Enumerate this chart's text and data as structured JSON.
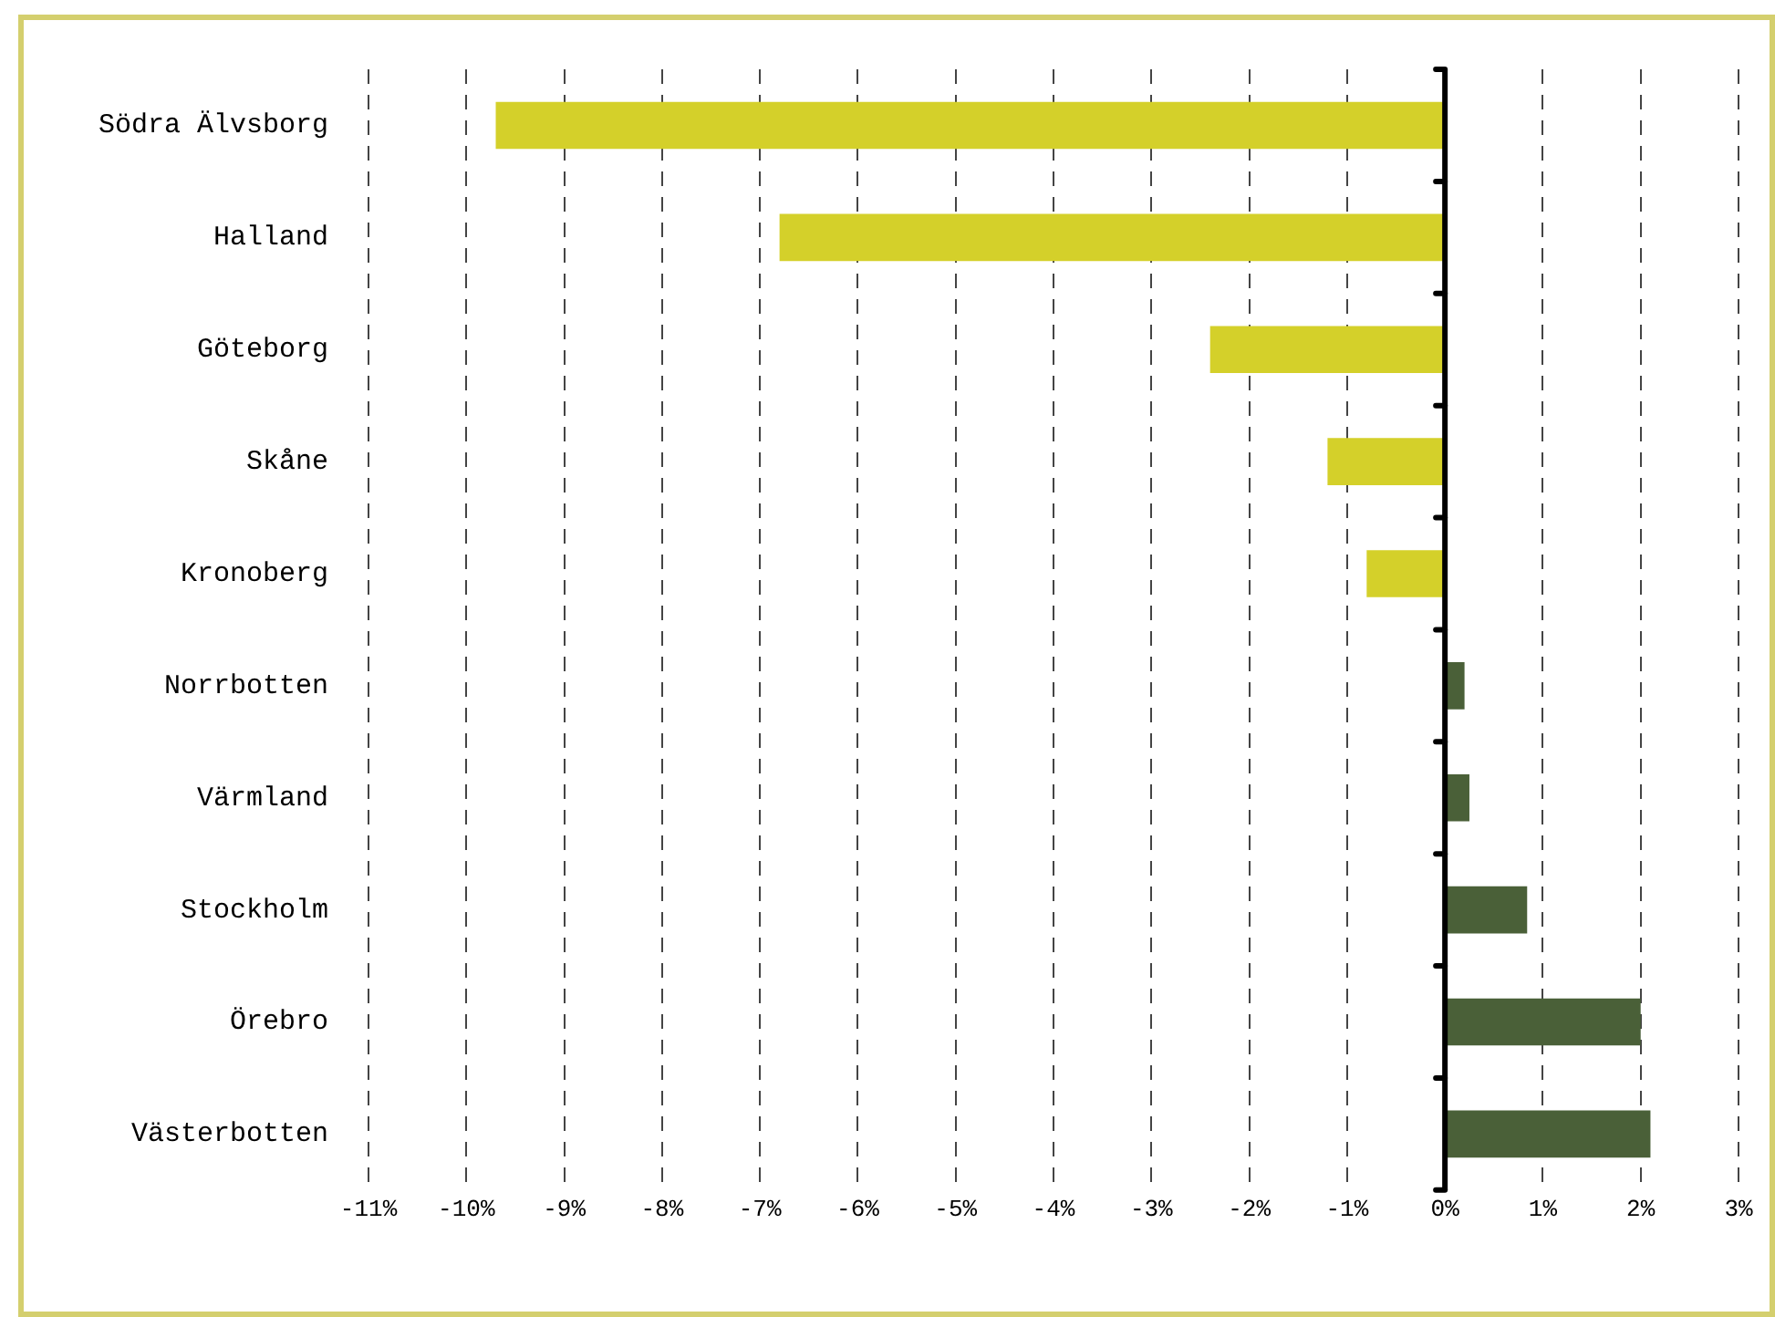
{
  "chart_data": {
    "type": "bar",
    "orientation": "horizontal",
    "categories": [
      "Södra Älvsborg",
      "Halland",
      "Göteborg",
      "Skåne",
      "Kronoberg",
      "Norrbotten",
      "Värmland",
      "Stockholm",
      "Örebro",
      "Västerbotten"
    ],
    "values": [
      -9.7,
      -6.8,
      -2.4,
      -1.2,
      -0.8,
      0.2,
      0.25,
      0.84,
      2.0,
      2.1
    ],
    "colors": [
      "#d4d02a",
      "#d4d02a",
      "#d4d02a",
      "#d4d02a",
      "#d4d02a",
      "#4a6038",
      "#4a6038",
      "#4a6038",
      "#4a6038",
      "#4a6038"
    ],
    "xlim": [
      -11,
      3
    ],
    "xticks": [
      {
        "value": -11,
        "label": "-11%"
      },
      {
        "value": -10,
        "label": "-10%"
      },
      {
        "value": -9,
        "label": "-9%"
      },
      {
        "value": -8,
        "label": "-8%"
      },
      {
        "value": -7,
        "label": "-7%"
      },
      {
        "value": -6,
        "label": "-6%"
      },
      {
        "value": -5,
        "label": "-5%"
      },
      {
        "value": -4,
        "label": "-4%"
      },
      {
        "value": -3,
        "label": "-3%"
      },
      {
        "value": -2,
        "label": "-2%"
      },
      {
        "value": -1,
        "label": "-1%"
      },
      {
        "value": 0,
        "label": "0%"
      },
      {
        "value": 1,
        "label": "1%"
      },
      {
        "value": 2,
        "label": "2%"
      },
      {
        "value": 3,
        "label": "3%"
      }
    ],
    "grid": "x",
    "legend": false
  }
}
